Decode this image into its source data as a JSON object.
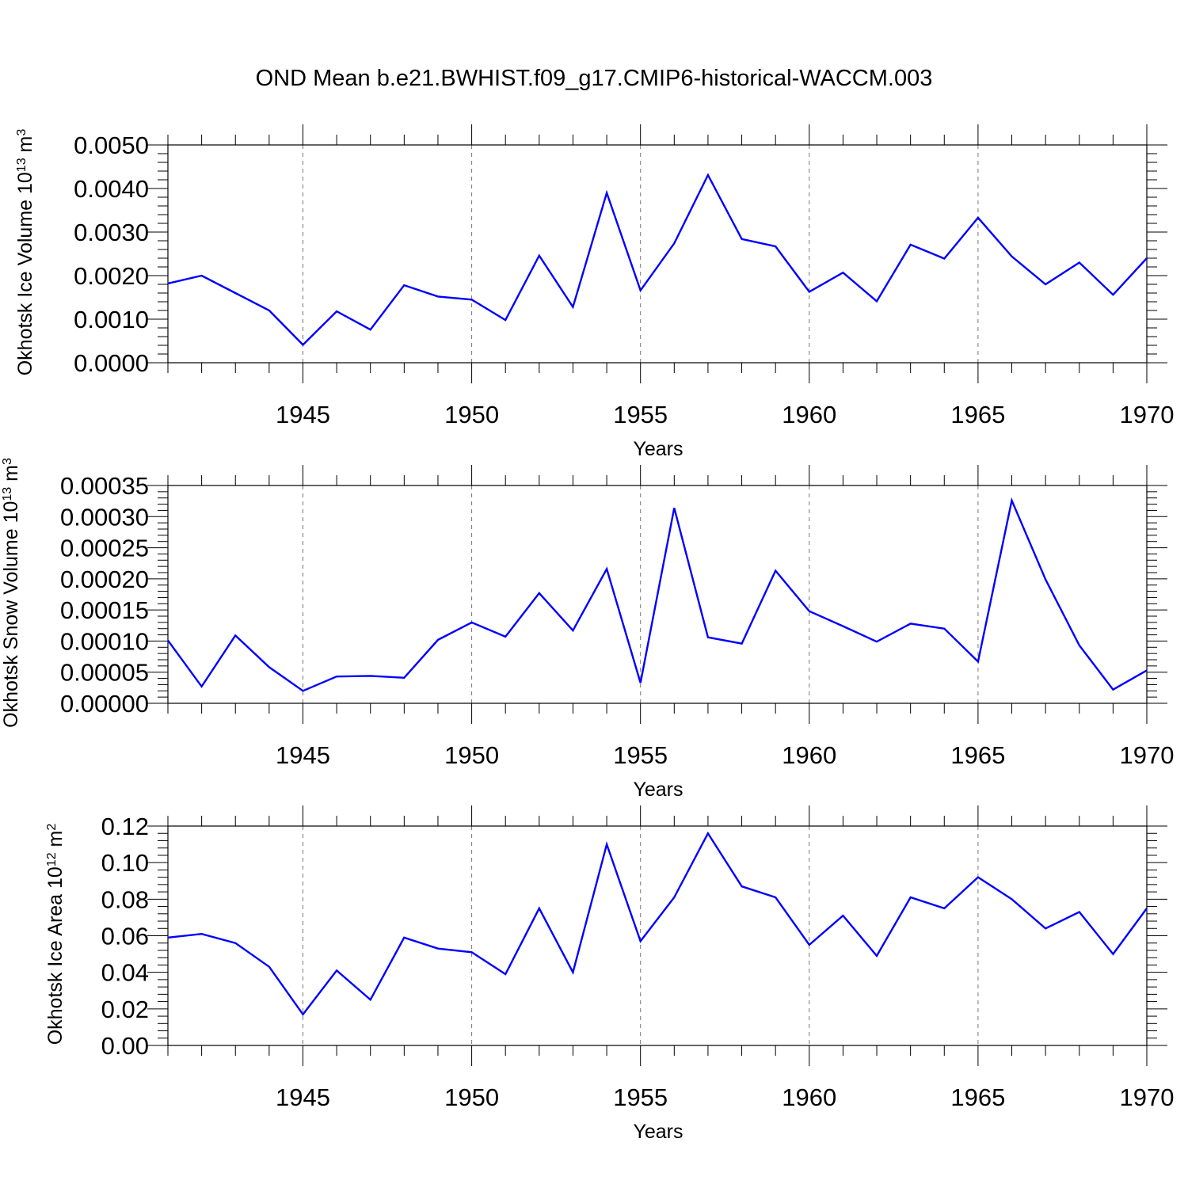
{
  "title": "OND Mean b.e21.BWHIST.f09_g17.CMIP6-historical-WACCM.003",
  "colors": {
    "line": "#0000ff",
    "grid": "#777777",
    "axis": "#000000"
  },
  "chart_data": [
    {
      "type": "line",
      "title": "OND Mean b.e21.BWHIST.f09_g17.CMIP6-historical-WACCM.003",
      "xlabel": "Years",
      "ylabel": {
        "text": "Okhotsk Ice Volume 10",
        "exponent": "13",
        "unit": " m",
        "unit_exponent": "3"
      },
      "xlim": [
        1941,
        1970
      ],
      "ylim": [
        0,
        0.005
      ],
      "x_ticks": [
        1945,
        1950,
        1955,
        1960,
        1965,
        1970
      ],
      "y_ticks": [
        0,
        0.001,
        0.002,
        0.003,
        0.004,
        0.005
      ],
      "y_tick_labels": [
        "0.0000",
        "0.0010",
        "0.0020",
        "0.0030",
        "0.0040",
        "0.0050"
      ],
      "grid": "vertical dashed at major x ticks",
      "x": [
        1941,
        1942,
        1943,
        1944,
        1945,
        1946,
        1947,
        1948,
        1949,
        1950,
        1951,
        1952,
        1953,
        1954,
        1955,
        1956,
        1957,
        1958,
        1959,
        1960,
        1961,
        1962,
        1963,
        1964,
        1965,
        1966,
        1967,
        1968,
        1969,
        1970
      ],
      "values": [
        0.00182,
        0.002,
        0.0016,
        0.0012,
        0.00041,
        0.00118,
        0.00076,
        0.00178,
        0.00152,
        0.00145,
        0.00098,
        0.00246,
        0.00128,
        0.0039,
        0.00166,
        0.00274,
        0.00431,
        0.00284,
        0.00267,
        0.00163,
        0.00207,
        0.00141,
        0.00271,
        0.00239,
        0.00333,
        0.00244,
        0.0018,
        0.0023,
        0.00156,
        0.0024
      ]
    },
    {
      "type": "line",
      "xlabel": "Years",
      "ylabel": {
        "text": "Okhotsk Snow Volume 10",
        "exponent": "13",
        "unit": " m",
        "unit_exponent": "3"
      },
      "xlim": [
        1941,
        1970
      ],
      "ylim": [
        0,
        0.00035
      ],
      "x_ticks": [
        1945,
        1950,
        1955,
        1960,
        1965,
        1970
      ],
      "y_ticks": [
        0,
        5e-05,
        0.0001,
        0.00015,
        0.0002,
        0.00025,
        0.0003,
        0.00035
      ],
      "y_tick_labels": [
        "0.00000",
        "0.00005",
        "0.00010",
        "0.00015",
        "0.00020",
        "0.00025",
        "0.00030",
        "0.00035"
      ],
      "grid": "vertical dashed at major x ticks",
      "x": [
        1941,
        1942,
        1943,
        1944,
        1945,
        1946,
        1947,
        1948,
        1949,
        1950,
        1951,
        1952,
        1953,
        1954,
        1955,
        1956,
        1957,
        1958,
        1959,
        1960,
        1961,
        1962,
        1963,
        1964,
        1965,
        1966,
        1967,
        1968,
        1969,
        1970
      ],
      "values": [
        0.000101,
        2.7e-05,
        0.000109,
        5.8e-05,
        2e-05,
        4.3e-05,
        4.4e-05,
        4.1e-05,
        0.000102,
        0.00013,
        0.000107,
        0.000177,
        0.000117,
        0.000216,
        3.3e-05,
        0.000314,
        0.000106,
        9.6e-05,
        0.000213,
        0.000148,
        0.000124,
        9.9e-05,
        0.000128,
        0.00012,
        6.7e-05,
        0.000326,
        0.000199,
        9.3e-05,
        2.2e-05,
        5.3e-05
      ]
    },
    {
      "type": "line",
      "xlabel": "Years",
      "ylabel": {
        "text": "Okhotsk Ice Area 10",
        "exponent": "12",
        "unit": " m",
        "unit_exponent": "2"
      },
      "xlim": [
        1941,
        1970
      ],
      "ylim": [
        0,
        0.12
      ],
      "x_ticks": [
        1945,
        1950,
        1955,
        1960,
        1965,
        1970
      ],
      "y_ticks": [
        0,
        0.02,
        0.04,
        0.06,
        0.08,
        0.1,
        0.12
      ],
      "y_tick_labels": [
        "0.00",
        "0.02",
        "0.04",
        "0.06",
        "0.08",
        "0.10",
        "0.12"
      ],
      "grid": "vertical dashed at major x ticks",
      "x": [
        1941,
        1942,
        1943,
        1944,
        1945,
        1946,
        1947,
        1948,
        1949,
        1950,
        1951,
        1952,
        1953,
        1954,
        1955,
        1956,
        1957,
        1958,
        1959,
        1960,
        1961,
        1962,
        1963,
        1964,
        1965,
        1966,
        1967,
        1968,
        1969,
        1970
      ],
      "values": [
        0.059,
        0.061,
        0.056,
        0.043,
        0.017,
        0.041,
        0.025,
        0.059,
        0.053,
        0.051,
        0.039,
        0.075,
        0.04,
        0.11,
        0.057,
        0.081,
        0.116,
        0.087,
        0.081,
        0.055,
        0.071,
        0.049,
        0.081,
        0.075,
        0.092,
        0.08,
        0.064,
        0.073,
        0.05,
        0.075
      ]
    }
  ]
}
